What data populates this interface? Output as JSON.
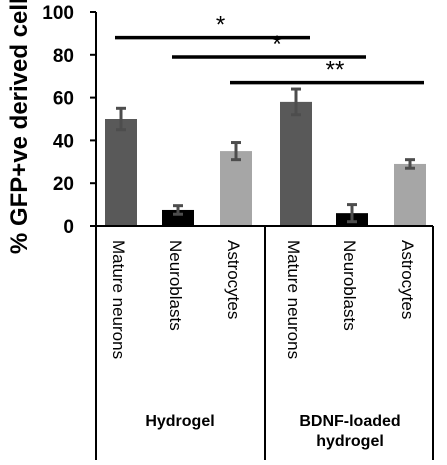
{
  "chart_data": {
    "type": "bar",
    "ylabel": "% GFP+ve derived cells",
    "ylim": [
      0,
      100
    ],
    "yticks": [
      0,
      20,
      40,
      60,
      80,
      100
    ],
    "grid": false,
    "groups": [
      {
        "name": "Hydrogel",
        "bars": [
          {
            "category": "Mature neurons",
            "value": 50,
            "error": 5,
            "color": "#595959"
          },
          {
            "category": "Neuroblasts",
            "value": 7.5,
            "error": 2,
            "color": "#000000"
          },
          {
            "category": "Astrocytes",
            "value": 35,
            "error": 4,
            "color": "#a6a6a6"
          }
        ]
      },
      {
        "name": "BDNF-loaded hydrogel",
        "bars": [
          {
            "category": "Mature neurons",
            "value": 58,
            "error": 6,
            "color": "#595959"
          },
          {
            "category": "Neuroblasts",
            "value": 6,
            "error": 4,
            "color": "#000000"
          },
          {
            "category": "Astrocytes",
            "value": 29,
            "error": 2,
            "color": "#a6a6a6"
          }
        ]
      }
    ],
    "significance": [
      {
        "label": "*",
        "y": 88,
        "from_bar": 0,
        "to_bar": 3
      },
      {
        "label": "*",
        "y": 79,
        "from_bar": 1,
        "to_bar": 4
      },
      {
        "label": "**",
        "y": 67,
        "from_bar": 2,
        "to_bar": 5
      }
    ]
  }
}
